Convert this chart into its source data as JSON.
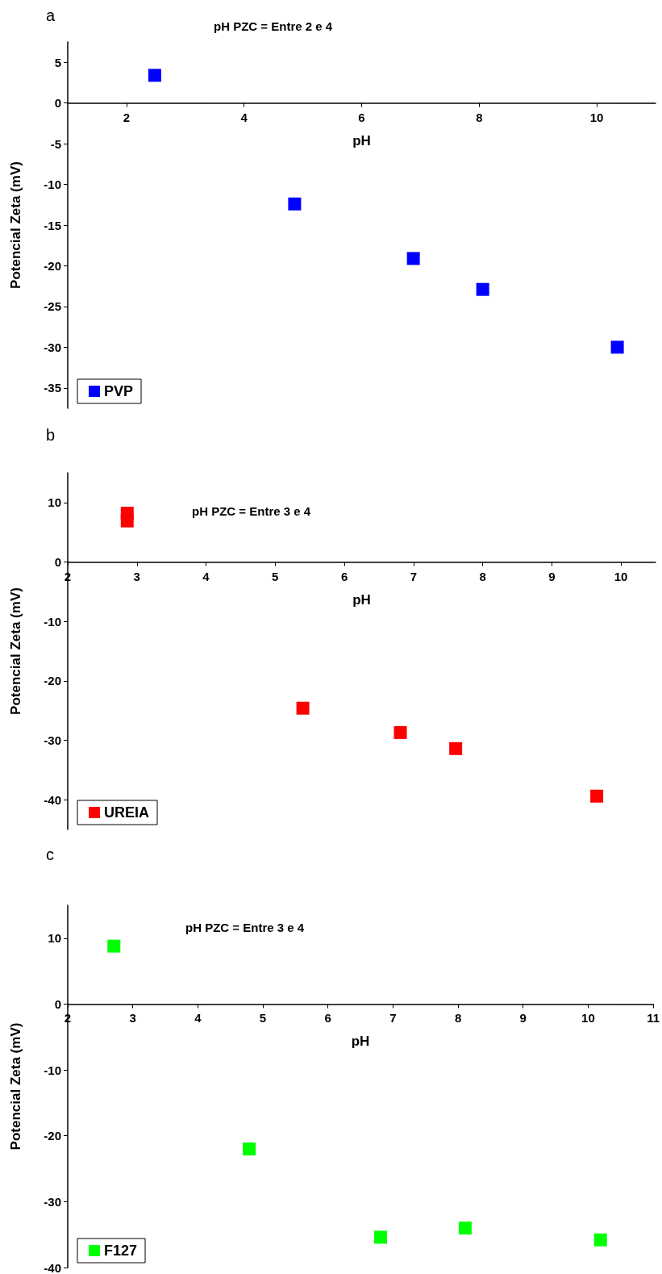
{
  "chart_data": [
    {
      "type": "scatter",
      "title": "a",
      "xlabel": "pH",
      "ylabel": "Potencial Zeta (mV)",
      "annotations": [
        "pH PZC = Entre 2 e 4"
      ],
      "xlim": [
        1,
        11
      ],
      "xticks": [
        2,
        4,
        6,
        8,
        10
      ],
      "ylim": [
        -37.5,
        7.5
      ],
      "yticks": [
        -35,
        -30,
        -25,
        -20,
        -15,
        -10,
        -5,
        0,
        5
      ],
      "x": [
        2.48,
        4.86,
        6.88,
        8.06,
        10.35
      ],
      "series": [
        {
          "name": "PVP",
          "color": "#0000ff",
          "values": [
            3.4,
            -12.4,
            -19.1,
            -22.9,
            -30.0
          ]
        }
      ],
      "marker": "square",
      "legend": "bottom left",
      "grid": false
    },
    {
      "type": "scatter",
      "title": "b",
      "xlabel": "pH",
      "ylabel": "Potencial Zeta (mV)",
      "annotations": [
        "pH PZC = Entre 3 e 4"
      ],
      "xlim": [
        2,
        10.5
      ],
      "xticks": [
        2,
        3,
        4,
        5,
        6,
        7,
        8,
        9,
        10
      ],
      "ylim": [
        -45,
        15
      ],
      "yticks": [
        -40,
        -30,
        -20,
        -10,
        0,
        10
      ],
      "x": [
        2.86,
        2.86,
        5.4,
        6.81,
        7.61,
        9.65
      ],
      "series": [
        {
          "name": "UREIA",
          "color": "#ff0000",
          "values": [
            8.2,
            6.9,
            -24.6,
            -28.7,
            -31.4,
            -39.4
          ]
        }
      ],
      "marker": "square",
      "legend": "bottom left",
      "grid": false
    },
    {
      "type": "scatter",
      "title": "c",
      "xlabel": "pH",
      "ylabel": "Potencial Zeta (mV)",
      "annotations": [
        "pH PZC = Entre 3 e 4"
      ],
      "xlim": [
        2,
        11
      ],
      "xticks": [
        2,
        3,
        4,
        5,
        6,
        7,
        8,
        9,
        10,
        11
      ],
      "ylim": [
        -40,
        15
      ],
      "yticks": [
        -40,
        -30,
        -20,
        -10,
        0,
        10
      ],
      "x": [
        2.71,
        4.79,
        6.81,
        8.11,
        10.19
      ],
      "series": [
        {
          "name": "F127",
          "color": "#00ff00",
          "values": [
            8.8,
            -22.0,
            -35.4,
            -34.0,
            -35.8
          ]
        }
      ],
      "marker": "square",
      "legend": "bottom left",
      "grid": false
    }
  ]
}
